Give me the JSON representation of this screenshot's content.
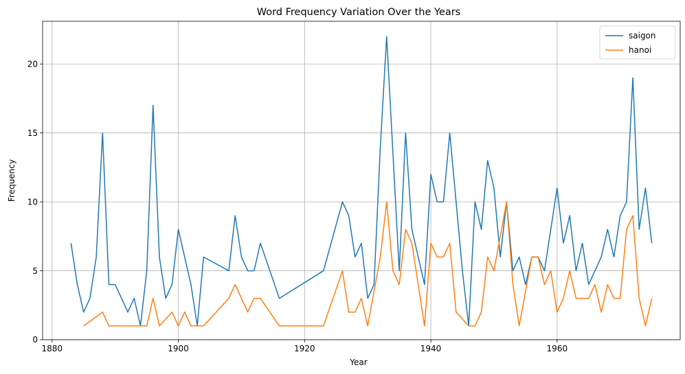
{
  "chart_data": {
    "type": "line",
    "title": "Word Frequency Variation Over the Years",
    "xlabel": "Year",
    "ylabel": "Frequency",
    "xlim": [
      1878.5,
      1979.5
    ],
    "ylim": [
      0,
      23.1
    ],
    "xticks": [
      1880,
      1900,
      1920,
      1940,
      1960
    ],
    "yticks": [
      0,
      5,
      10,
      15,
      20
    ],
    "grid": true,
    "legend_position": "top-right",
    "series": [
      {
        "name": "saigon",
        "color": "#1f77b4",
        "x": [
          1883,
          1884,
          1885,
          1886,
          1887,
          1888,
          1889,
          1890,
          1891,
          1892,
          1893,
          1894,
          1895,
          1896,
          1897,
          1898,
          1899,
          1900,
          1902,
          1903,
          1904,
          1908,
          1909,
          1910,
          1911,
          1912,
          1913,
          1916,
          1923,
          1926,
          1927,
          1928,
          1929,
          1930,
          1931,
          1932,
          1933,
          1935,
          1936,
          1937,
          1938,
          1939,
          1940,
          1941,
          1942,
          1943,
          1944,
          1945,
          1946,
          1947,
          1948,
          1949,
          1950,
          1951,
          1952,
          1953,
          1954,
          1955,
          1956,
          1957,
          1958,
          1960,
          1961,
          1962,
          1963,
          1964,
          1965,
          1967,
          1968,
          1969,
          1970,
          1971,
          1972,
          1973,
          1974,
          1975
        ],
        "y": [
          7,
          4,
          2,
          3,
          6,
          15,
          4,
          4,
          3,
          2,
          3,
          1,
          5,
          17,
          6,
          3,
          4,
          8,
          4,
          1,
          6,
          5,
          9,
          6,
          5,
          5,
          7,
          3,
          5,
          10,
          9,
          6,
          7,
          3,
          4,
          14,
          22,
          5,
          15,
          8,
          6,
          4,
          12,
          10,
          10,
          15,
          10,
          5,
          1,
          10,
          8,
          13,
          11,
          6,
          10,
          5,
          6,
          4,
          6,
          6,
          5,
          11,
          7,
          9,
          5,
          7,
          4,
          6,
          8,
          6,
          9,
          10,
          19,
          8,
          11,
          7
        ]
      },
      {
        "name": "hanoi",
        "color": "#ff7f0e",
        "x": [
          1885,
          1888,
          1889,
          1890,
          1891,
          1892,
          1893,
          1894,
          1895,
          1896,
          1897,
          1899,
          1900,
          1901,
          1902,
          1903,
          1904,
          1908,
          1909,
          1911,
          1912,
          1913,
          1916,
          1923,
          1926,
          1927,
          1928,
          1929,
          1930,
          1932,
          1933,
          1934,
          1935,
          1936,
          1937,
          1939,
          1940,
          1941,
          1942,
          1943,
          1944,
          1946,
          1947,
          1948,
          1949,
          1950,
          1952,
          1953,
          1954,
          1956,
          1957,
          1958,
          1959,
          1960,
          1961,
          1962,
          1963,
          1964,
          1965,
          1966,
          1967,
          1968,
          1969,
          1970,
          1971,
          1972,
          1973,
          1974,
          1975
        ],
        "y": [
          1,
          2,
          1,
          1,
          1,
          1,
          1,
          1,
          1,
          3,
          1,
          2,
          1,
          2,
          1,
          1,
          1,
          3,
          4,
          2,
          3,
          3,
          1,
          1,
          5,
          2,
          2,
          3,
          1,
          6,
          10,
          5,
          4,
          8,
          7,
          1,
          7,
          6,
          6,
          7,
          2,
          1,
          1,
          2,
          6,
          5,
          10,
          4,
          1,
          6,
          6,
          4,
          5,
          2,
          3,
          5,
          3,
          3,
          3,
          4,
          2,
          4,
          3,
          3,
          8,
          9,
          3,
          1,
          3
        ]
      }
    ]
  }
}
